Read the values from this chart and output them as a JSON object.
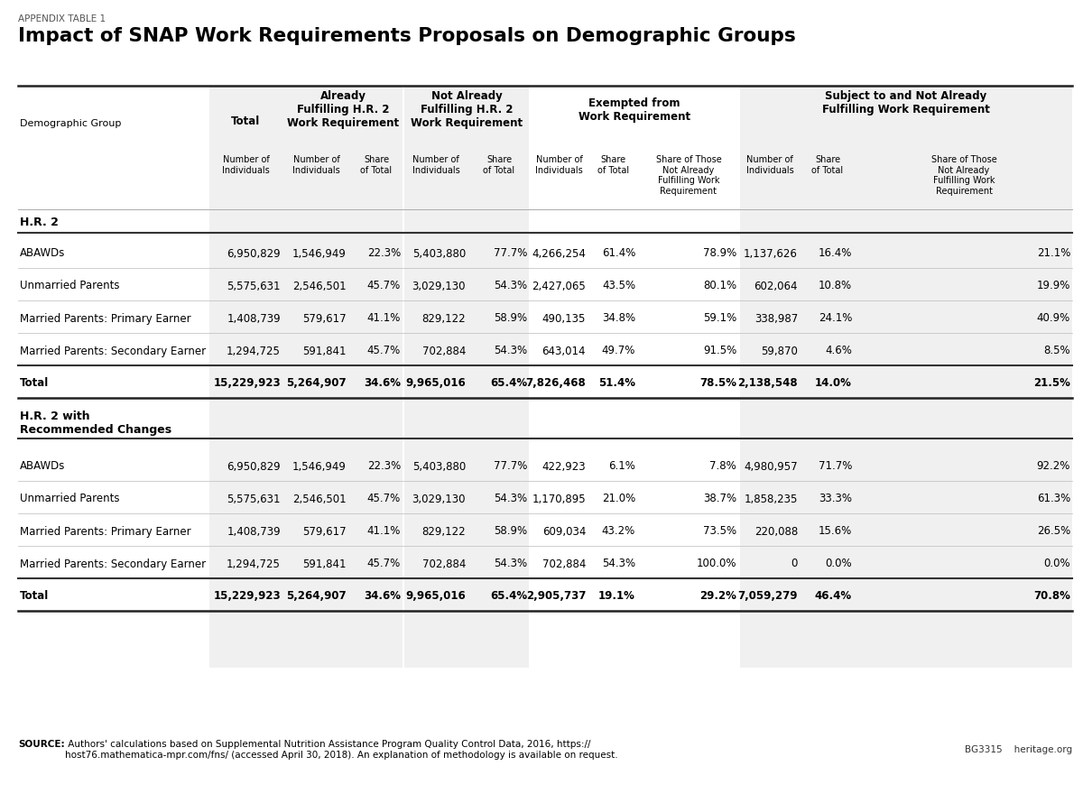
{
  "appendix_label": "APPENDIX TABLE 1",
  "title": "Impact of SNAP Work Requirements Proposals on Demographic Groups",
  "background_color": "#ffffff",
  "shade_color": "#f0f0f0",
  "section1_label": "H.R. 2",
  "section2_label": "H.R. 2 with\nRecommended Changes",
  "rows_hr2": [
    {
      "group": "ABAWDs",
      "total": "6,950,829",
      "already_n": "1,546,949",
      "already_s": "22.3%",
      "notalready_n": "5,403,880",
      "notalready_s": "77.7%",
      "exempt_n": "4,266,254",
      "exempt_s": "61.4%",
      "exempt_share": "78.9%",
      "subject_n": "1,137,626",
      "subject_s": "16.4%",
      "subject_share": "21.1%",
      "is_total": false
    },
    {
      "group": "Unmarried Parents",
      "total": "5,575,631",
      "already_n": "2,546,501",
      "already_s": "45.7%",
      "notalready_n": "3,029,130",
      "notalready_s": "54.3%",
      "exempt_n": "2,427,065",
      "exempt_s": "43.5%",
      "exempt_share": "80.1%",
      "subject_n": "602,064",
      "subject_s": "10.8%",
      "subject_share": "19.9%",
      "is_total": false
    },
    {
      "group": "Married Parents: Primary Earner",
      "total": "1,408,739",
      "already_n": "579,617",
      "already_s": "41.1%",
      "notalready_n": "829,122",
      "notalready_s": "58.9%",
      "exempt_n": "490,135",
      "exempt_s": "34.8%",
      "exempt_share": "59.1%",
      "subject_n": "338,987",
      "subject_s": "24.1%",
      "subject_share": "40.9%",
      "is_total": false
    },
    {
      "group": "Married Parents: Secondary Earner",
      "total": "1,294,725",
      "already_n": "591,841",
      "already_s": "45.7%",
      "notalready_n": "702,884",
      "notalready_s": "54.3%",
      "exempt_n": "643,014",
      "exempt_s": "49.7%",
      "exempt_share": "91.5%",
      "subject_n": "59,870",
      "subject_s": "4.6%",
      "subject_share": "8.5%",
      "is_total": false
    },
    {
      "group": "Total",
      "total": "15,229,923",
      "already_n": "5,264,907",
      "already_s": "34.6%",
      "notalready_n": "9,965,016",
      "notalready_s": "65.4%",
      "exempt_n": "7,826,468",
      "exempt_s": "51.4%",
      "exempt_share": "78.5%",
      "subject_n": "2,138,548",
      "subject_s": "14.0%",
      "subject_share": "21.5%",
      "is_total": true
    }
  ],
  "rows_hr2rc": [
    {
      "group": "ABAWDs",
      "total": "6,950,829",
      "already_n": "1,546,949",
      "already_s": "22.3%",
      "notalready_n": "5,403,880",
      "notalready_s": "77.7%",
      "exempt_n": "422,923",
      "exempt_s": "6.1%",
      "exempt_share": "7.8%",
      "subject_n": "4,980,957",
      "subject_s": "71.7%",
      "subject_share": "92.2%",
      "is_total": false
    },
    {
      "group": "Unmarried Parents",
      "total": "5,575,631",
      "already_n": "2,546,501",
      "already_s": "45.7%",
      "notalready_n": "3,029,130",
      "notalready_s": "54.3%",
      "exempt_n": "1,170,895",
      "exempt_s": "21.0%",
      "exempt_share": "38.7%",
      "subject_n": "1,858,235",
      "subject_s": "33.3%",
      "subject_share": "61.3%",
      "is_total": false
    },
    {
      "group": "Married Parents: Primary Earner",
      "total": "1,408,739",
      "already_n": "579,617",
      "already_s": "41.1%",
      "notalready_n": "829,122",
      "notalready_s": "58.9%",
      "exempt_n": "609,034",
      "exempt_s": "43.2%",
      "exempt_share": "73.5%",
      "subject_n": "220,088",
      "subject_s": "15.6%",
      "subject_share": "26.5%",
      "is_total": false
    },
    {
      "group": "Married Parents: Secondary Earner",
      "total": "1,294,725",
      "already_n": "591,841",
      "already_s": "45.7%",
      "notalready_n": "702,884",
      "notalready_s": "54.3%",
      "exempt_n": "702,884",
      "exempt_s": "54.3%",
      "exempt_share": "100.0%",
      "subject_n": "0",
      "subject_s": "0.0%",
      "subject_share": "0.0%",
      "is_total": false
    },
    {
      "group": "Total",
      "total": "15,229,923",
      "already_n": "5,264,907",
      "already_s": "34.6%",
      "notalready_n": "9,965,016",
      "notalready_s": "65.4%",
      "exempt_n": "2,905,737",
      "exempt_s": "19.1%",
      "exempt_share": "29.2%",
      "subject_n": "7,059,279",
      "subject_s": "46.4%",
      "subject_share": "70.8%",
      "is_total": true
    }
  ],
  "source_bold": "SOURCE:",
  "source_text": " Authors' calculations based on Supplemental Nutrition Assistance Program Quality Control Data, 2016, https://\nhost76.mathematica-mpr.com/fns/ (accessed April 30, 2018). An explanation of methodology is available on request.",
  "footer_right": "BG3315    heritage.org"
}
